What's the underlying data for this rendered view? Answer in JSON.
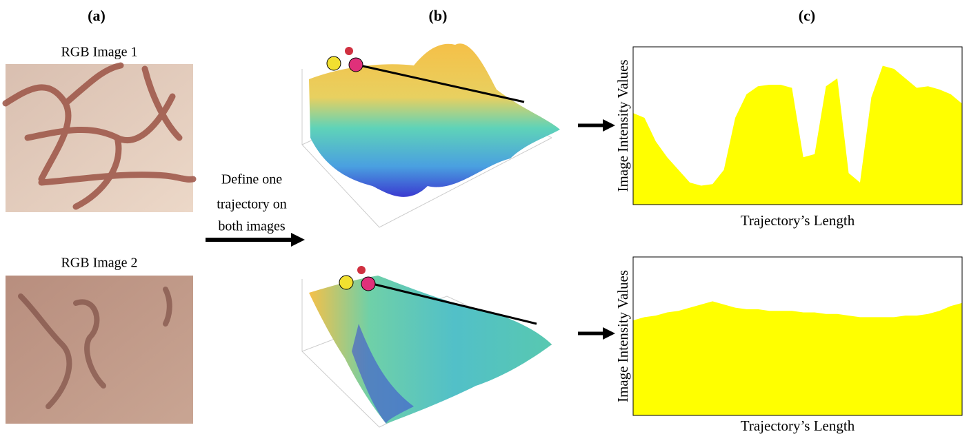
{
  "panel_labels": [
    "(a)",
    "(b)",
    "(c)"
  ],
  "images": [
    "RGB Image 1",
    "RGB Image 2"
  ],
  "arrow_text": [
    "Define one",
    "trajectory on",
    "both images"
  ],
  "chart_data": [
    {
      "type": "area",
      "ylabel": "Image Intensity Values",
      "xlabel": "Trajectory’s Length",
      "color": "#ffff00",
      "ylim": [
        0,
        100
      ],
      "values": [
        58,
        55,
        40,
        30,
        22,
        14,
        12,
        13,
        22,
        55,
        70,
        75,
        76,
        76,
        74,
        30,
        32,
        75,
        80,
        20,
        14,
        68,
        88,
        86,
        80,
        74,
        75,
        73,
        70,
        64
      ]
    },
    {
      "type": "area",
      "ylabel": "Image Intensity Values",
      "xlabel": "Trajectory’s Length",
      "color": "#ffff00",
      "ylim": [
        0,
        100
      ],
      "values": [
        60,
        62,
        63,
        65,
        66,
        68,
        70,
        72,
        70,
        68,
        67,
        67,
        66,
        66,
        66,
        65,
        65,
        64,
        64,
        63,
        62,
        62,
        62,
        62,
        63,
        63,
        64,
        66,
        69,
        71
      ]
    }
  ]
}
